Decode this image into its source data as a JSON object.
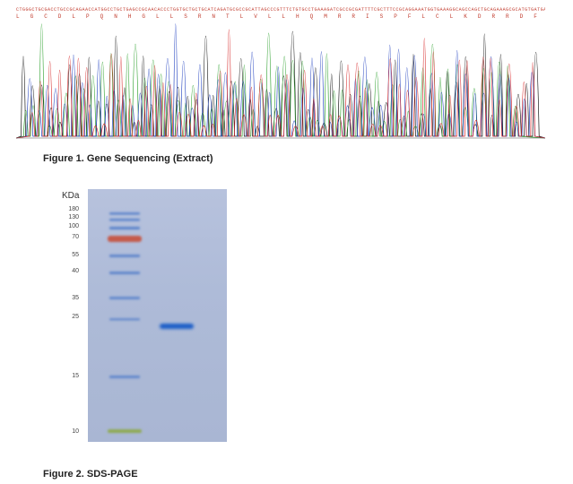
{
  "figure1": {
    "caption": "Figure 1. Gene Sequencing (Extract)",
    "dna_sequence": "CTGGGCTGCGACCTGCCGCAGAACCATGGCCTGCTGAGCCGCAACACCCTGGTGCTGCTGCATCAGATGCGCCGCATTAGCCCGTTTCTGTGCCTGAAAGATCGCCGCGATTTTCGCTTTCCGCAGGAAATGGTGAAAGGCAGCCAGCTGCAGAAAGCGCATGTGATGAGCGTGCTGCATGAAATGCTGCAGCAGATTTTTAGCCTGTTTCATACCGAACGCAGCAGCGCGGCG",
    "protein_sequence": "L G C D L P Q N H G L L S R N T L V L L H Q M R R I S P F L C L K D R R D F R F P Q E M V K G S Q L Q K A H V M S V L H E M L Q Q I F S L F H T E R S S A A"
  },
  "figure2": {
    "caption": "Figure 2. SDS-PAGE",
    "unit_label": "KDa",
    "ladder_markers": [
      "180",
      "130",
      "100",
      "70",
      "55",
      "40",
      "35",
      "25",
      "15",
      "10"
    ]
  },
  "colors": {
    "trace_A": "#2ca02c",
    "trace_C": "#1f3fbf",
    "trace_G": "#111111",
    "trace_T": "#d62728",
    "band_blue": "#1f5fc8",
    "band_red": "#c8503c",
    "band_green": "#8aa83a"
  }
}
